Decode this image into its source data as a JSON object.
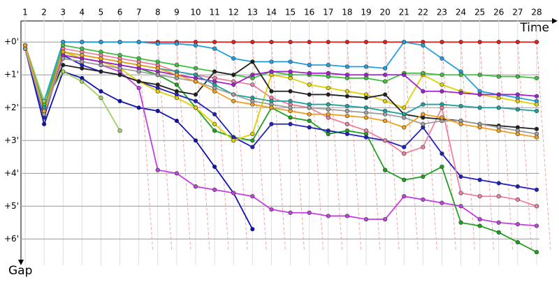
{
  "chart_data": {
    "type": "line",
    "x_label": "Time",
    "y_label": "Gap",
    "grid": true,
    "y_inverted": true,
    "categories": [
      "1",
      "2",
      "3",
      "4",
      "5",
      "6",
      "7",
      "8",
      "9",
      "10",
      "11",
      "12",
      "13",
      "14",
      "15",
      "16",
      "17",
      "18",
      "19",
      "20",
      "21",
      "22",
      "23",
      "24",
      "25",
      "26",
      "27",
      "28"
    ],
    "ylim": [
      -0.6,
      6.8
    ],
    "yticks": [
      {
        "value": 0,
        "label": "+0'"
      },
      {
        "value": 1,
        "label": "+1'"
      },
      {
        "value": 2,
        "label": "+2'"
      },
      {
        "value": 3,
        "label": "+3'"
      },
      {
        "value": 4,
        "label": "+4'"
      },
      {
        "value": 5,
        "label": "+5'"
      },
      {
        "value": 6,
        "label": "+6'"
      }
    ],
    "series": [
      {
        "color": "#e02020",
        "values": [
          0.2,
          2.2,
          0,
          0,
          0,
          0,
          0,
          0,
          0,
          0,
          0,
          0,
          0,
          0,
          0,
          0,
          0,
          0,
          0,
          0,
          0,
          0,
          0,
          0,
          0,
          0,
          0,
          0
        ]
      },
      {
        "color": "#20a0e0",
        "values": [
          0.1,
          1.8,
          0,
          0,
          0,
          0,
          0,
          0.05,
          0.05,
          0.1,
          0.2,
          0.5,
          0.6,
          0.6,
          0.6,
          0.7,
          0.7,
          0.75,
          0.75,
          0.8,
          0,
          0.1,
          0.5,
          0.9,
          1.5,
          1.6,
          1.7,
          1.8
        ]
      },
      {
        "color": "#1010b0",
        "values": [
          0.2,
          2.5,
          0.9,
          1.1,
          1.5,
          1.8,
          2.0,
          2.1,
          2.4,
          3.0,
          3.8,
          4.6,
          5.7,
          null,
          null,
          null,
          null,
          null,
          null,
          null,
          null,
          null,
          null,
          null,
          null,
          null,
          null,
          null
        ]
      },
      {
        "color": "#c040e0",
        "values": [
          0.1,
          2.2,
          0.5,
          0.6,
          0.7,
          0.9,
          1.4,
          3.9,
          4.0,
          4.4,
          4.5,
          4.6,
          4.7,
          5.1,
          5.2,
          5.2,
          5.3,
          5.3,
          5.4,
          5.4,
          4.7,
          4.8,
          4.9,
          5.0,
          5.4,
          5.5,
          5.55,
          5.6
        ]
      },
      {
        "color": "#20a020",
        "values": [
          0.1,
          2.0,
          0.3,
          0.5,
          0.6,
          0.7,
          0.8,
          1.0,
          1.3,
          2.0,
          2.7,
          2.9,
          3.0,
          2.0,
          2.3,
          2.4,
          2.8,
          2.7,
          2.8,
          3.9,
          4.2,
          4.1,
          3.8,
          5.5,
          5.6,
          5.8,
          6.1,
          6.4
        ]
      },
      {
        "color": "#2020c0",
        "values": [
          0.1,
          2.3,
          0.4,
          0.7,
          0.9,
          1.0,
          1.2,
          1.4,
          1.6,
          1.8,
          2.2,
          2.9,
          3.2,
          2.5,
          2.5,
          2.6,
          2.7,
          2.8,
          2.9,
          3.0,
          3.2,
          2.6,
          3.4,
          4.1,
          4.2,
          4.3,
          4.4,
          4.5
        ]
      },
      {
        "color": "#f080a0",
        "values": [
          0.2,
          2.1,
          0.2,
          0.3,
          0.4,
          0.5,
          0.6,
          0.7,
          0.9,
          1.0,
          1.1,
          1.2,
          1.3,
          1.7,
          1.9,
          2.0,
          2.3,
          2.5,
          2.7,
          3.0,
          3.4,
          3.2,
          2.0,
          4.6,
          4.7,
          4.7,
          4.8,
          5.0
        ]
      },
      {
        "color": "#e0d000",
        "values": [
          0.1,
          2.0,
          0.3,
          0.5,
          0.6,
          0.8,
          1.2,
          1.5,
          1.7,
          2.0,
          2.5,
          3.0,
          2.8,
          1.0,
          1.1,
          1.3,
          1.4,
          1.5,
          1.6,
          1.8,
          2.0,
          1.0,
          1.3,
          1.5,
          1.6,
          1.7,
          1.8,
          1.9
        ]
      },
      {
        "color": "#40c040",
        "values": [
          0.1,
          1.9,
          0.1,
          0.2,
          0.3,
          0.4,
          0.5,
          0.6,
          0.7,
          0.8,
          0.9,
          1.0,
          1.1,
          0.9,
          1.0,
          1.0,
          1.05,
          1.1,
          1.1,
          1.2,
          0.95,
          0.95,
          1.0,
          1.0,
          1.0,
          1.05,
          1.05,
          1.1
        ]
      },
      {
        "color": "#a0d060",
        "values": [
          0.1,
          1.8,
          0.9,
          1.2,
          1.7,
          2.7,
          null,
          null,
          null,
          null,
          null,
          null,
          null,
          null,
          null,
          null,
          null,
          null,
          null,
          null,
          null,
          null,
          null,
          null,
          null,
          null,
          null,
          null
        ]
      },
      {
        "color": "#202020",
        "values": [
          0.2,
          2.0,
          0.7,
          0.8,
          0.9,
          1.0,
          1.2,
          1.3,
          1.5,
          1.6,
          0.9,
          1.0,
          0.6,
          1.5,
          1.5,
          1.6,
          1.6,
          1.65,
          1.7,
          1.6,
          2.2,
          2.3,
          2.35,
          2.4,
          2.5,
          2.55,
          2.6,
          2.65
        ]
      },
      {
        "color": "#a020d0",
        "values": [
          0.1,
          2.1,
          0.4,
          0.5,
          0.6,
          0.7,
          0.8,
          0.9,
          1.0,
          1.1,
          1.2,
          1.3,
          1.0,
          0.9,
          0.9,
          0.95,
          0.95,
          1.0,
          1.0,
          1.0,
          1.0,
          1.5,
          1.5,
          1.55,
          1.6,
          1.6,
          1.6,
          1.65
        ]
      },
      {
        "color": "#20a0a0",
        "values": [
          0.1,
          2.0,
          0.3,
          0.4,
          0.5,
          0.6,
          0.7,
          0.8,
          0.9,
          1.0,
          1.3,
          1.6,
          1.7,
          1.8,
          1.8,
          1.9,
          1.9,
          1.95,
          2.0,
          2.1,
          2.2,
          1.9,
          1.9,
          1.95,
          2.0,
          2.0,
          2.05,
          2.1
        ]
      },
      {
        "color": "#a0a0a0",
        "values": [
          0.2,
          2.2,
          0.5,
          0.6,
          0.7,
          0.8,
          0.9,
          1.0,
          1.1,
          1.2,
          1.4,
          1.6,
          1.8,
          1.9,
          2.0,
          2.0,
          2.05,
          2.1,
          2.15,
          2.2,
          2.3,
          2.5,
          2.4,
          2.4,
          2.5,
          2.6,
          2.7,
          2.8
        ]
      },
      {
        "color": "#f0a020",
        "values": [
          0.1,
          2.1,
          0.3,
          0.4,
          0.5,
          0.6,
          0.7,
          0.8,
          1.0,
          1.2,
          1.5,
          1.8,
          1.9,
          2.0,
          2.1,
          2.2,
          2.2,
          2.25,
          2.3,
          2.4,
          2.6,
          2.2,
          2.3,
          2.5,
          2.6,
          2.7,
          2.8,
          2.9
        ]
      }
    ]
  }
}
